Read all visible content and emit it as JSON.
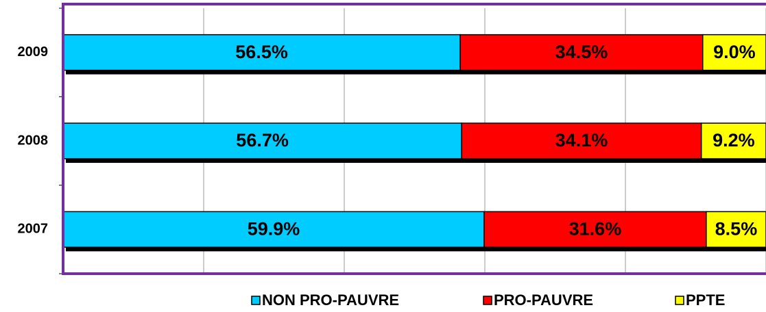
{
  "chart_data": {
    "type": "stacked_barh",
    "categories": [
      "2009",
      "2008",
      "2007"
    ],
    "series": [
      {
        "name": "NON PRO-PAUVRE",
        "color": "#00ccff",
        "values": [
          56.5,
          56.7,
          59.9
        ],
        "value_labels": [
          "56.5%",
          "56.7%",
          "59.9%"
        ]
      },
      {
        "name": "PRO-PAUVRE",
        "color": "#ff0000",
        "values": [
          34.5,
          34.1,
          31.6
        ],
        "value_labels": [
          "34.5%",
          "34.1%",
          "31.6%"
        ]
      },
      {
        "name": "PPTE",
        "color": "#ffff00",
        "values": [
          9.0,
          9.2,
          8.5
        ],
        "value_labels": [
          "9.0%",
          "9.2%",
          "8.5%"
        ]
      }
    ],
    "xlim": [
      0,
      100
    ],
    "xticks": [
      0,
      20,
      40,
      60,
      80,
      100
    ],
    "grid": true,
    "legend": "bottom"
  }
}
